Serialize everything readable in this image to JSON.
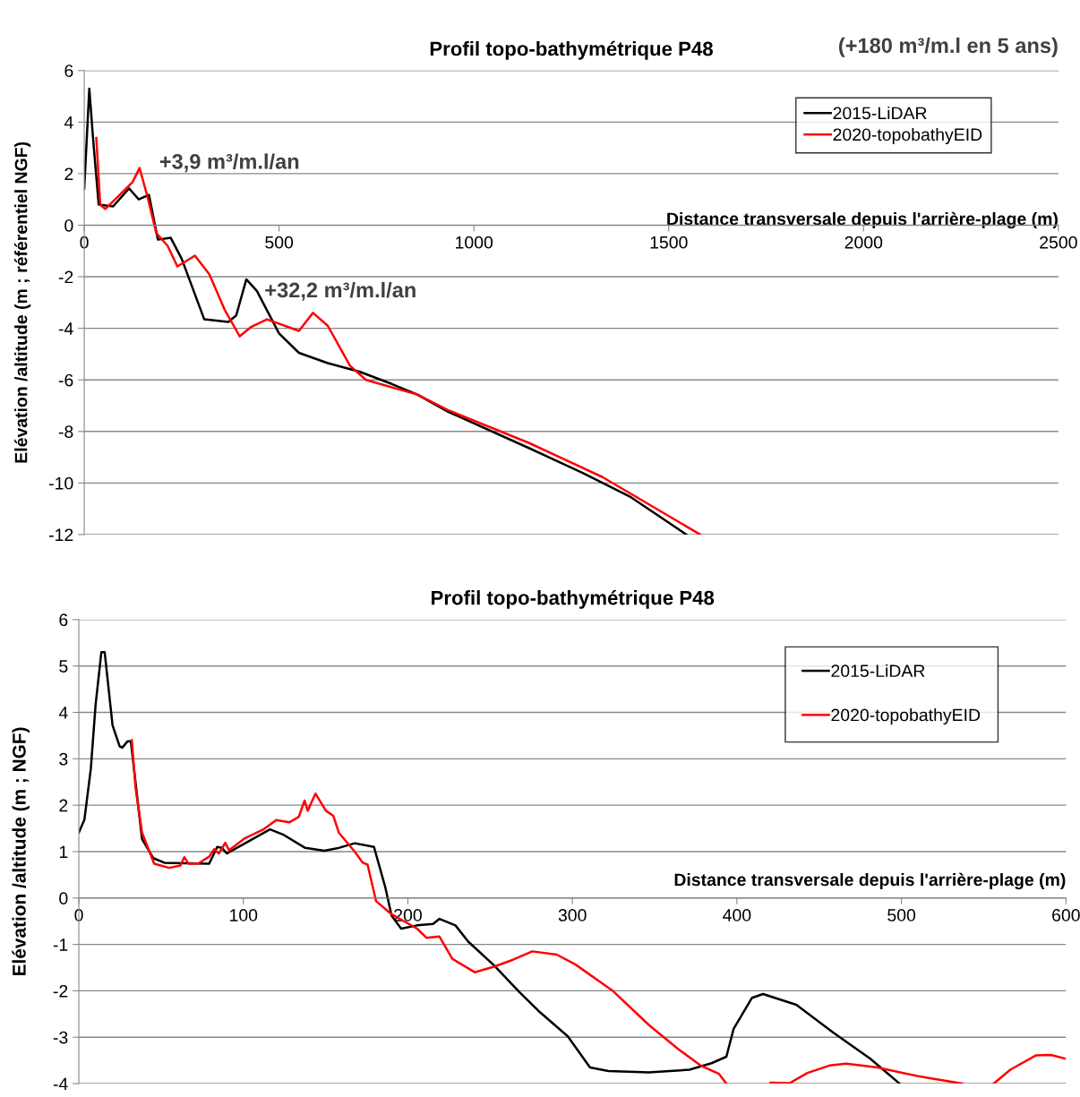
{
  "chart_data": [
    {
      "type": "line",
      "title": "Profil topo-bathymétrique P48",
      "xlabel": "Distance transversale depuis l'arrière-plage (m)",
      "ylabel": "Elévation /altitude (m ; référentiel NGF)",
      "xlim": [
        0,
        2500
      ],
      "xticks": [
        0,
        500,
        1000,
        1500,
        2000,
        2500
      ],
      "ylim": [
        -12,
        6
      ],
      "yticks": [
        -12,
        -10,
        -8,
        -6,
        -4,
        -2,
        0,
        2,
        4,
        6
      ],
      "grid": "y",
      "legend": "top right",
      "annotations": [
        "(+180 m³/m.l en 5 ans)",
        "+3,9 m³/m.l/an",
        "+32,2 m³/m.l/an"
      ],
      "series": [
        {
          "name": "2015-LiDAR",
          "color": "#000000",
          "x": [
            0,
            13,
            23,
            37,
            74,
            115,
            140,
            166,
            189,
            222,
            250,
            308,
            370,
            390,
            416,
            443,
            500,
            551,
            625,
            706,
            788,
            855,
            933,
            1142,
            1278,
            1403,
            1545
          ],
          "values": [
            1.42,
            5.3,
            3.3,
            0.8,
            0.73,
            1.43,
            1.0,
            1.18,
            -0.56,
            -0.49,
            -1.3,
            -3.65,
            -3.75,
            -3.5,
            -2.1,
            -2.55,
            -4.2,
            -4.95,
            -5.35,
            -5.68,
            -6.15,
            -6.57,
            -7.23,
            -8.65,
            -9.6,
            -10.55,
            -12
          ]
        },
        {
          "name": "2020-topobathyEID",
          "color": "#ff0000",
          "x": [
            31,
            41,
            54,
            91,
            124,
            142,
            161,
            185,
            214,
            239,
            284,
            321,
            361,
            399,
            427,
            469,
            551,
            587,
            625,
            682,
            723,
            855,
            933,
            1142,
            1330,
            1581
          ],
          "values": [
            3.38,
            0.8,
            0.63,
            1.18,
            1.67,
            2.22,
            1.18,
            -0.31,
            -0.8,
            -1.6,
            -1.18,
            -1.9,
            -3.3,
            -4.31,
            -3.96,
            -3.65,
            -4.1,
            -3.4,
            -3.9,
            -5.45,
            -6.0,
            -6.57,
            -7.17,
            -8.45,
            -9.77,
            -12
          ]
        }
      ]
    },
    {
      "type": "line",
      "title": "Profil topo-bathymétrique P48",
      "xlabel": "Distance transversale depuis l'arrière-plage (m)",
      "ylabel": "Elévation /altitude (m ; NGF)",
      "xlim": [
        0,
        600
      ],
      "xticks": [
        0,
        100,
        200,
        300,
        400,
        500,
        600
      ],
      "ylim": [
        -4,
        6
      ],
      "yticks": [
        -4,
        -3,
        -2,
        -1,
        0,
        1,
        2,
        3,
        4,
        5,
        6
      ],
      "grid": "y",
      "legend": "top right",
      "series": [
        {
          "name": "2015-LiDAR",
          "color": "#000000",
          "x": [
            0,
            3.4,
            7.3,
            10.2,
            13.7,
            15.7,
            20.5,
            24.8,
            26.4,
            29.7,
            31.6,
            38.4,
            45.2,
            52.0,
            79.2,
            84.1,
            87.0,
            89.9,
            100.6,
            116.2,
            124.0,
            137.6,
            149.2,
            157.0,
            167.7,
            179.4,
            186.2,
            190.1,
            195.9,
            205.6,
            215.3,
            219.2,
            228.9,
            236.7,
            252.3,
            267.8,
            279.3,
            297.2,
            310.7,
            321.9,
            346.5,
            371.2,
            384.6,
            393.6,
            398.0,
            409.2,
            415.9,
            427.2,
            436.1,
            458.5,
            480.9,
            498.9
          ],
          "values": [
            1.41,
            1.69,
            2.79,
            4.17,
            5.3,
            5.3,
            3.72,
            3.27,
            3.24,
            3.38,
            3.38,
            1.27,
            0.86,
            0.76,
            0.74,
            1.1,
            1.08,
            0.96,
            1.17,
            1.48,
            1.37,
            1.08,
            1.02,
            1.07,
            1.18,
            1.1,
            0.24,
            -0.38,
            -0.66,
            -0.59,
            -0.56,
            -0.45,
            -0.59,
            -0.94,
            -1.45,
            -2.03,
            -2.43,
            -2.98,
            -3.65,
            -3.73,
            -3.76,
            -3.7,
            -3.56,
            -3.42,
            -2.82,
            -2.15,
            -2.07,
            -2.2,
            -2.3,
            -2.9,
            -3.46,
            -4.0
          ]
        },
        {
          "name": "2020-topobathyEID",
          "color": "#ff0000",
          "x": [
            32.2,
            34.5,
            38.4,
            45.8,
            54.9,
            61.7,
            64.1,
            66.6,
            72.4,
            79.2,
            82.2,
            85.1,
            89.0,
            91.3,
            100.6,
            112.3,
            120.0,
            127.9,
            133.7,
            137.2,
            139.1,
            143.8,
            150.2,
            154.7,
            158.0,
            167.7,
            172.6,
            175.5,
            180.7,
            190.1,
            205.6,
            211.4,
            219.2,
            227.0,
            240.6,
            252.3,
            263.9,
            275.6,
            290.5,
            301.7,
            324.2,
            346.6,
            364.5,
            377.9,
            389.1,
            393.6,
            407.0,
            420.5,
            432.0,
            442.9,
            456.3,
            466.4,
            485.4,
            510.1,
            537.0,
            546.5,
            556.1,
            566.2,
            581.9,
            590.8,
            599.4
          ],
          "values": [
            3.4,
            2.37,
            1.41,
            0.74,
            0.65,
            0.7,
            0.88,
            0.74,
            0.74,
            0.89,
            1.05,
            0.96,
            1.19,
            1.03,
            1.28,
            1.48,
            1.68,
            1.63,
            1.75,
            2.1,
            1.88,
            2.25,
            1.88,
            1.77,
            1.41,
            1.0,
            0.76,
            0.72,
            -0.07,
            -0.35,
            -0.66,
            -0.86,
            -0.83,
            -1.31,
            -1.6,
            -1.48,
            -1.33,
            -1.15,
            -1.22,
            -1.43,
            -1.99,
            -2.74,
            -3.26,
            -3.61,
            -3.79,
            -4.0,
            null,
            -3.98,
            -3.99,
            -3.77,
            -3.61,
            -3.57,
            -3.65,
            -3.84,
            -4.0,
            null,
            -4.0,
            -3.7,
            -3.39,
            -3.38,
            -3.46
          ]
        }
      ]
    }
  ]
}
